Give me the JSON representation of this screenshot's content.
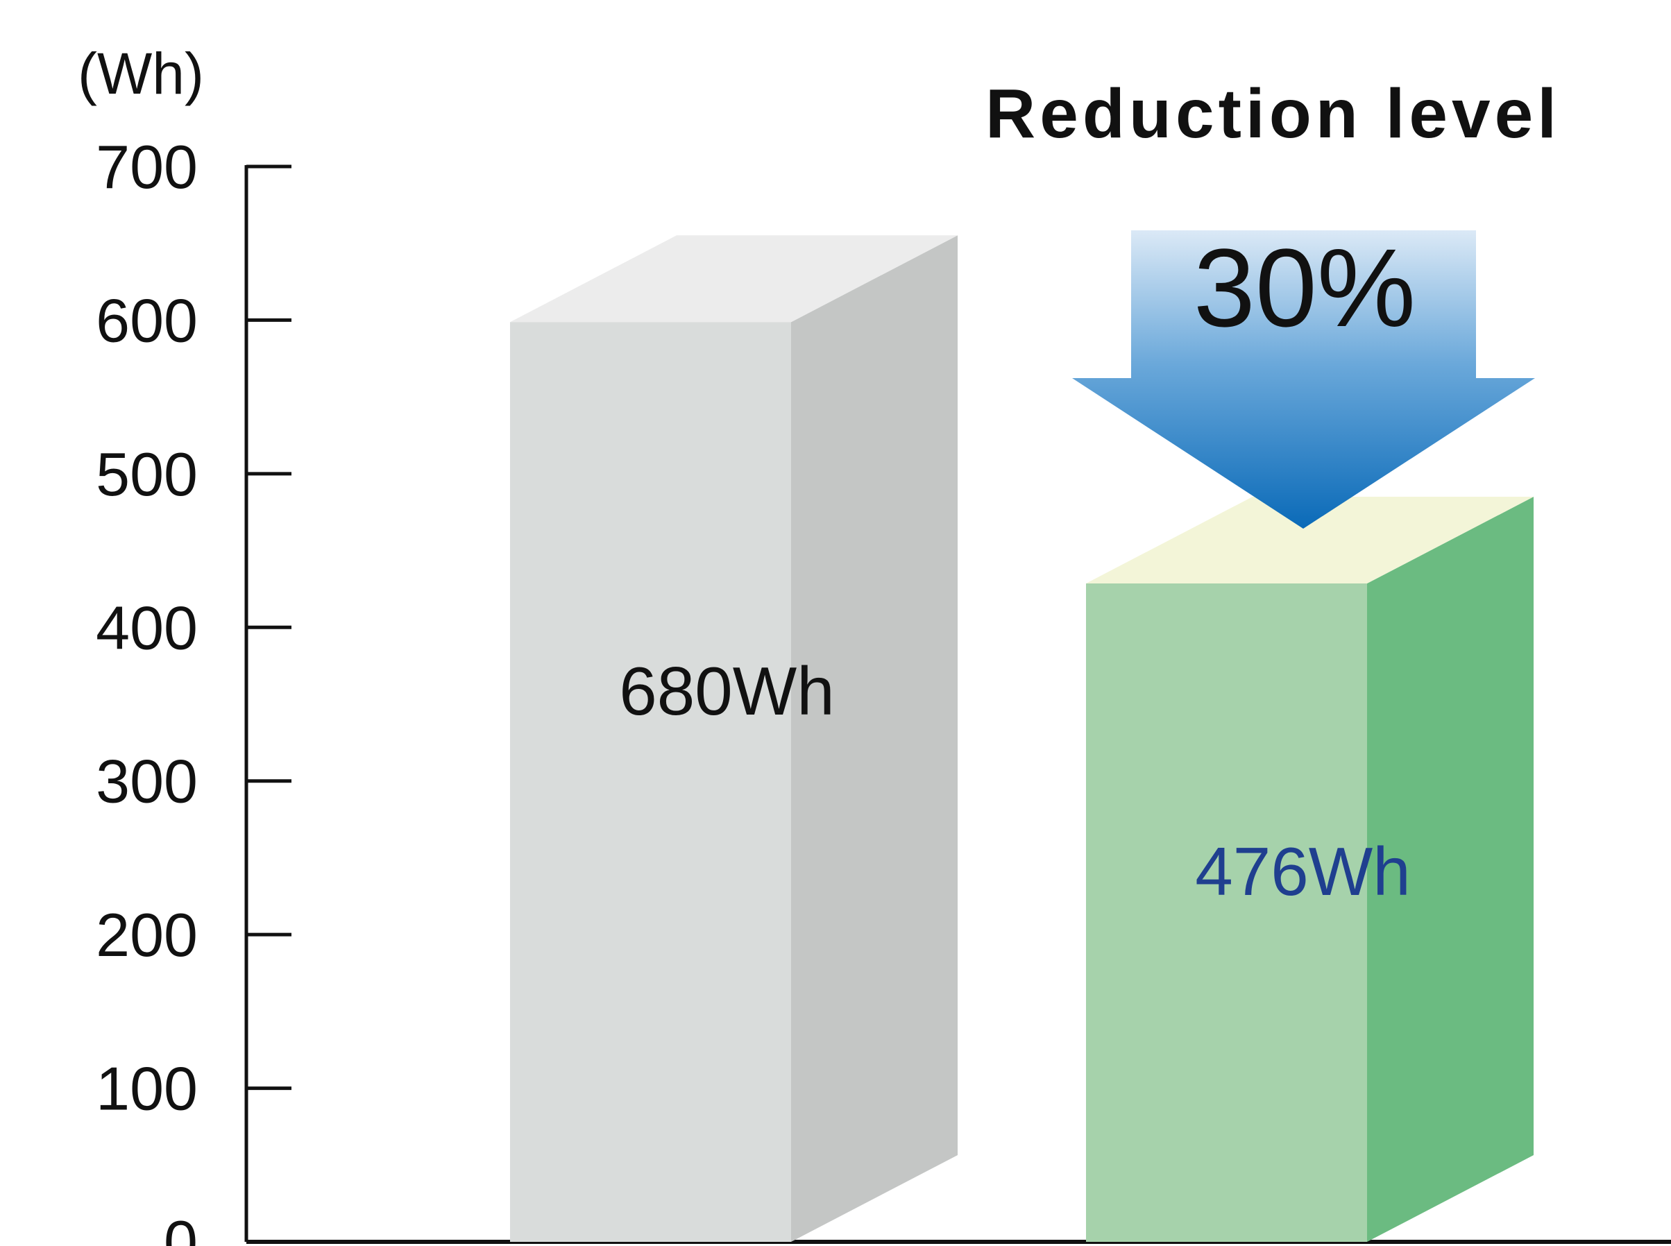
{
  "chart_data": {
    "type": "bar",
    "title": "Reduction level",
    "ylabel": "(Wh)",
    "xlabel": "",
    "ylim": [
      0,
      700
    ],
    "yticks": [
      0,
      100,
      200,
      300,
      400,
      500,
      600,
      700
    ],
    "grid": false,
    "categories": [
      "",
      ""
    ],
    "values": [
      680,
      476
    ],
    "value_labels": [
      "680Wh",
      "476Wh"
    ],
    "colors": {
      "bar1_front": "#d9dcdb",
      "bar1_side": "#c4c6c5",
      "bar1_top": "#ececec",
      "bar2_front": "#a6d2ab",
      "bar2_side": "#6bbb81",
      "bar2_top": "#f3f5d8",
      "bar2_label": "#1f3f8f",
      "bar1_label": "#111111",
      "arrow_top": "#dbe9f6",
      "arrow_bottom": "#0a6ab8"
    },
    "annotation": {
      "text": "30%",
      "kind": "down-arrow"
    }
  }
}
